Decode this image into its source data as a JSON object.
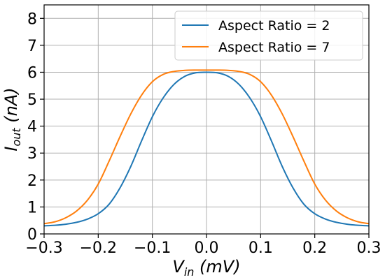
{
  "chart_data": {
    "type": "line",
    "xlabel": {
      "main": "V",
      "sub": "in",
      "rest": " (mV)"
    },
    "ylabel": {
      "main": "I",
      "sub": "out",
      "rest": " (nA)"
    },
    "xlim": [
      -0.3,
      0.3
    ],
    "ylim": [
      0,
      8.5
    ],
    "xticks": [
      -0.3,
      -0.2,
      -0.1,
      0.0,
      0.1,
      0.2,
      0.3
    ],
    "xtick_labels": [
      "−0.3",
      "−0.2",
      "−0.1",
      "0.0",
      "0.1",
      "0.2",
      "0.3"
    ],
    "yticks": [
      0,
      1,
      2,
      3,
      4,
      5,
      6,
      7,
      8
    ],
    "ytick_labels": [
      "0",
      "1",
      "2",
      "3",
      "4",
      "5",
      "6",
      "7",
      "8"
    ],
    "grid": true,
    "legend_position": "top-right",
    "series": [
      {
        "name": "Aspect Ratio = 2",
        "color": "#1f77b4",
        "x": [
          -0.3,
          -0.28,
          -0.26,
          -0.24,
          -0.22,
          -0.2,
          -0.18,
          -0.16,
          -0.14,
          -0.12,
          -0.1,
          -0.08,
          -0.06,
          -0.04,
          -0.02,
          0.0,
          0.02,
          0.04,
          0.06,
          0.08,
          0.1,
          0.12,
          0.14,
          0.16,
          0.18,
          0.2,
          0.22,
          0.24,
          0.26,
          0.28,
          0.3
        ],
        "y": [
          0.3,
          0.32,
          0.36,
          0.43,
          0.55,
          0.75,
          1.1,
          1.7,
          2.5,
          3.45,
          4.35,
          5.05,
          5.55,
          5.85,
          5.98,
          6.0,
          5.98,
          5.85,
          5.55,
          5.05,
          4.35,
          3.45,
          2.5,
          1.7,
          1.1,
          0.75,
          0.55,
          0.43,
          0.36,
          0.32,
          0.3
        ]
      },
      {
        "name": "Aspect Ratio = 7",
        "color": "#ff7f0e",
        "x": [
          -0.3,
          -0.28,
          -0.26,
          -0.24,
          -0.22,
          -0.2,
          -0.18,
          -0.16,
          -0.14,
          -0.12,
          -0.1,
          -0.08,
          -0.06,
          -0.04,
          -0.02,
          0.0,
          0.02,
          0.04,
          0.06,
          0.08,
          0.1,
          0.12,
          0.14,
          0.16,
          0.18,
          0.2,
          0.22,
          0.24,
          0.26,
          0.28,
          0.3
        ],
        "y": [
          0.38,
          0.45,
          0.6,
          0.85,
          1.25,
          1.85,
          2.7,
          3.6,
          4.45,
          5.15,
          5.65,
          5.92,
          6.03,
          6.07,
          6.08,
          6.08,
          6.08,
          6.07,
          6.03,
          5.92,
          5.65,
          5.15,
          4.45,
          3.6,
          2.7,
          1.85,
          1.25,
          0.85,
          0.6,
          0.45,
          0.38
        ]
      }
    ]
  }
}
